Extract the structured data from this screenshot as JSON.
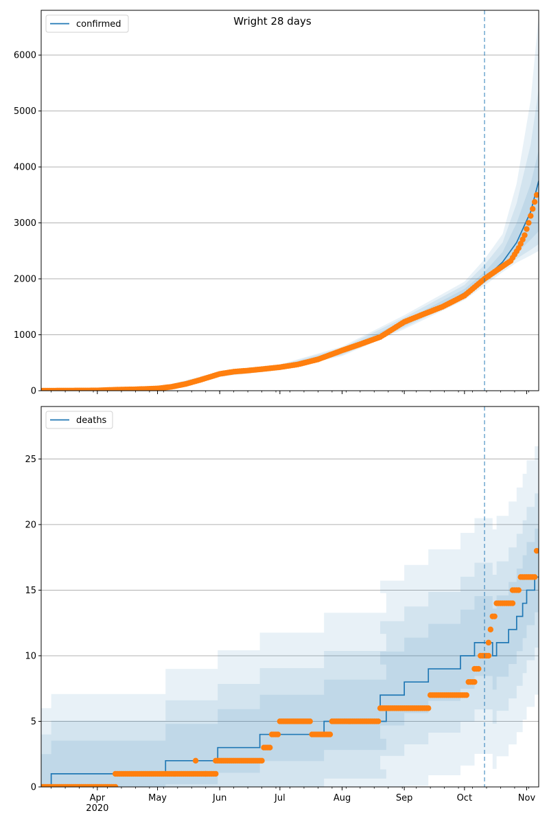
{
  "title": "Wright 28 days",
  "chart_data": [
    {
      "type": "line",
      "panel": "top",
      "legend": [
        "confirmed"
      ],
      "legend_position": "upper-left",
      "grid": "horizontal",
      "ylim": [
        0,
        6800
      ],
      "yticks": [
        0,
        1000,
        2000,
        3000,
        4000,
        5000,
        6000
      ],
      "xlim": [
        "2020-03-04",
        "2020-11-07"
      ],
      "forecast_start": "2020-10-11",
      "model_median": [
        [
          "2020-03-04",
          0
        ],
        [
          "2020-04-01",
          5
        ],
        [
          "2020-04-20",
          25
        ],
        [
          "2020-05-05",
          50
        ],
        [
          "2020-05-15",
          110
        ],
        [
          "2020-05-22",
          180
        ],
        [
          "2020-06-01",
          290
        ],
        [
          "2020-06-15",
          350
        ],
        [
          "2020-07-01",
          410
        ],
        [
          "2020-07-15",
          500
        ],
        [
          "2020-08-01",
          700
        ],
        [
          "2020-08-15",
          900
        ],
        [
          "2020-09-01",
          1200
        ],
        [
          "2020-09-15",
          1420
        ],
        [
          "2020-10-01",
          1750
        ],
        [
          "2020-10-11",
          2000
        ],
        [
          "2020-10-20",
          2300
        ],
        [
          "2020-10-27",
          2650
        ],
        [
          "2020-11-03",
          3200
        ],
        [
          "2020-11-07",
          3750
        ]
      ],
      "bands": [
        {
          "name": "95%",
          "lower": [
            [
              2020,
              0
            ]
          ],
          "points": [
            [
              "2020-03-04",
              0,
              0
            ],
            [
              "2020-05-01",
              30,
              60
            ],
            [
              "2020-06-01",
              250,
              340
            ],
            [
              "2020-07-01",
              370,
              470
            ],
            [
              "2020-08-01",
              620,
              790
            ],
            [
              "2020-09-01",
              1100,
              1350
            ],
            [
              "2020-10-01",
              1620,
              1950
            ],
            [
              "2020-10-11",
              1880,
              2350
            ],
            [
              "2020-10-20",
              2120,
              2800
            ],
            [
              "2020-10-27",
              2290,
              3700
            ],
            [
              "2020-11-03",
              2420,
              5200
            ],
            [
              "2020-11-07",
              2500,
              6700
            ]
          ]
        },
        {
          "name": "80%",
          "points": [
            [
              "2020-03-04",
              0,
              0
            ],
            [
              "2020-05-01",
              35,
              55
            ],
            [
              "2020-06-01",
              260,
              325
            ],
            [
              "2020-07-01",
              380,
              455
            ],
            [
              "2020-08-01",
              640,
              765
            ],
            [
              "2020-09-01",
              1130,
              1310
            ],
            [
              "2020-10-01",
              1660,
              1890
            ],
            [
              "2020-10-11",
              1920,
              2250
            ],
            [
              "2020-10-20",
              2160,
              2650
            ],
            [
              "2020-10-27",
              2360,
              3350
            ],
            [
              "2020-11-03",
              2520,
              4400
            ],
            [
              "2020-11-07",
              2620,
              5400
            ]
          ]
        },
        {
          "name": "50%",
          "points": [
            [
              "2020-03-04",
              0,
              0
            ],
            [
              "2020-05-01",
              40,
              50
            ],
            [
              "2020-06-01",
              275,
              310
            ],
            [
              "2020-07-01",
              395,
              435
            ],
            [
              "2020-08-01",
              670,
              735
            ],
            [
              "2020-09-01",
              1160,
              1250
            ],
            [
              "2020-10-01",
              1700,
              1820
            ],
            [
              "2020-10-11",
              1960,
              2120
            ],
            [
              "2020-10-20",
              2220,
              2480
            ],
            [
              "2020-10-27",
              2460,
              3000
            ],
            [
              "2020-11-03",
              2700,
              3700
            ],
            [
              "2020-11-07",
              2850,
              4300
            ]
          ]
        }
      ],
      "observed": [
        [
          "2020-03-04",
          0
        ],
        [
          "2020-04-01",
          5
        ],
        [
          "2020-04-10",
          18
        ],
        [
          "2020-04-20",
          25
        ],
        [
          "2020-05-01",
          40
        ],
        [
          "2020-05-08",
          70
        ],
        [
          "2020-05-15",
          120
        ],
        [
          "2020-05-22",
          190
        ],
        [
          "2020-06-01",
          300
        ],
        [
          "2020-06-08",
          340
        ],
        [
          "2020-06-15",
          360
        ],
        [
          "2020-06-22",
          385
        ],
        [
          "2020-07-01",
          420
        ],
        [
          "2020-07-10",
          470
        ],
        [
          "2020-07-20",
          560
        ],
        [
          "2020-08-01",
          720
        ],
        [
          "2020-08-10",
          830
        ],
        [
          "2020-08-20",
          960
        ],
        [
          "2020-09-01",
          1230
        ],
        [
          "2020-09-10",
          1360
        ],
        [
          "2020-09-20",
          1500
        ],
        [
          "2020-10-01",
          1700
        ],
        [
          "2020-10-11",
          2000
        ],
        [
          "2020-10-17",
          2150
        ],
        [
          "2020-10-24",
          2320
        ],
        [
          "2020-10-28",
          2550
        ],
        [
          "2020-10-31",
          2780
        ],
        [
          "2020-11-02",
          3000
        ],
        [
          "2020-11-04",
          3250
        ],
        [
          "2020-11-06",
          3500
        ]
      ]
    },
    {
      "type": "line",
      "panel": "bottom",
      "legend": [
        "deaths"
      ],
      "legend_position": "upper-left",
      "grid": "horizontal",
      "ylim": [
        0,
        29
      ],
      "yticks": [
        0,
        5,
        10,
        15,
        20,
        25
      ],
      "xlim": [
        "2020-03-04",
        "2020-11-07"
      ],
      "xtick_labels": [
        "Apr\n2020",
        "May",
        "Jun",
        "Jul",
        "Aug",
        "Sep",
        "Oct",
        "Nov"
      ],
      "forecast_start": "2020-10-11",
      "model_median_steps": [
        [
          "2020-03-04",
          0
        ],
        [
          "2020-03-09",
          1
        ],
        [
          "2020-05-05",
          2
        ],
        [
          "2020-05-31",
          3
        ],
        [
          "2020-06-21",
          4
        ],
        [
          "2020-07-23",
          5
        ],
        [
          "2020-08-23",
          6
        ],
        [
          "2020-08-20",
          7
        ],
        [
          "2020-09-01",
          8
        ],
        [
          "2020-09-13",
          9
        ],
        [
          "2020-09-29",
          10
        ],
        [
          "2020-10-06",
          11
        ],
        [
          "2020-10-15",
          10
        ],
        [
          "2020-10-17",
          11
        ],
        [
          "2020-10-23",
          12
        ],
        [
          "2020-10-27",
          13
        ],
        [
          "2020-10-30",
          14
        ],
        [
          "2020-11-01",
          15
        ],
        [
          "2020-11-05",
          16
        ]
      ],
      "observed_steps": [
        [
          "2020-03-04",
          "2020-04-10",
          0
        ],
        [
          "2020-04-10",
          "2020-05-25",
          1
        ],
        [
          "2020-05-20",
          "2020-05-20",
          2
        ],
        [
          "2020-05-25",
          "2020-05-30",
          1
        ],
        [
          "2020-05-30",
          "2020-06-22",
          2
        ],
        [
          "2020-06-23",
          "2020-06-26",
          3
        ],
        [
          "2020-06-27",
          "2020-06-30",
          4
        ],
        [
          "2020-07-01",
          "2020-07-16",
          5
        ],
        [
          "2020-07-17",
          "2020-07-26",
          4
        ],
        [
          "2020-07-27",
          "2020-08-19",
          5
        ],
        [
          "2020-08-20",
          "2020-09-13",
          6
        ],
        [
          "2020-09-14",
          "2020-10-02",
          7
        ],
        [
          "2020-10-03",
          "2020-10-06",
          8
        ],
        [
          "2020-10-06",
          "2020-10-08",
          9
        ],
        [
          "2020-10-09",
          "2020-10-13",
          10
        ],
        [
          "2020-10-13",
          "2020-10-13",
          11
        ],
        [
          "2020-10-14",
          "2020-10-14",
          12
        ],
        [
          "2020-10-15",
          "2020-10-16",
          13
        ],
        [
          "2020-10-17",
          "2020-10-25",
          14
        ],
        [
          "2020-10-25",
          "2020-10-28",
          15
        ],
        [
          "2020-10-29",
          "2020-11-05",
          16
        ],
        [
          "2020-11-06",
          "2020-11-06",
          18
        ]
      ]
    }
  ]
}
